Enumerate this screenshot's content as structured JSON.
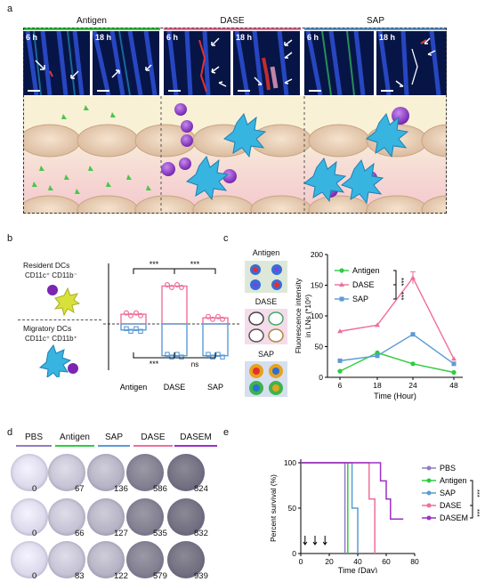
{
  "panel_labels": {
    "a": "a",
    "b": "b",
    "c": "c",
    "d": "d",
    "e": "e"
  },
  "panel_a": {
    "groups": [
      {
        "name": "Antigen",
        "color": "#2ecc40",
        "times": [
          "6 h",
          "18 h"
        ]
      },
      {
        "name": "DASE",
        "color": "#ef6f9a",
        "times": [
          "6 h",
          "18 h"
        ]
      },
      {
        "name": "SAP",
        "color": "#5b9bd5",
        "times": [
          "6 h",
          "18 h"
        ]
      }
    ]
  },
  "panel_b": {
    "legend_top_title": "Resident DCs",
    "legend_top_marker": "CD11c⁺ CD11b⁻",
    "legend_bottom_title": "Migratory DCs",
    "legend_bottom_marker": "CD11c⁺ CD11b⁺",
    "sig_top_1": "***",
    "sig_top_2": "***",
    "sig_bottom_1": "***",
    "sig_bottom_2": "ns",
    "colors": {
      "resident": "#ef6f9a",
      "migratory": "#5b9bd5"
    }
  },
  "chart_data": [
    {
      "type": "bar",
      "categories": [
        "Antigen",
        "DASE",
        "SAP"
      ],
      "series": [
        {
          "values": [
            3.2,
            12.5,
            2.0
          ]
        },
        {
          "values": [
            -2.0,
            -10.5,
            -10.5
          ]
        }
      ],
      "ylim": [
        -12,
        14
      ]
    },
    {
      "type": "line",
      "x": [
        6,
        18,
        24,
        48
      ],
      "xticks": [
        "6",
        "18",
        "24",
        "48"
      ],
      "yticks": [
        "0",
        "50",
        "100",
        "150",
        "200"
      ],
      "ylim": [
        0,
        200
      ],
      "xlabel": "Time (Hour)",
      "ylabel_line1": "Fluorescence intensity",
      "ylabel_line2": "in LNs (*10⁶)",
      "series": [
        {
          "name": "Antigen",
          "color": "#2ecc40",
          "values": [
            10,
            40,
            22,
            8
          ]
        },
        {
          "name": "DASE",
          "color": "#ef6f9a",
          "values": [
            75,
            85,
            162,
            30
          ]
        },
        {
          "name": "SAP",
          "color": "#5b9bd5",
          "values": [
            27,
            35,
            70,
            22
          ]
        }
      ],
      "sig": [
        "***",
        "***"
      ]
    },
    {
      "type": "line",
      "x": [
        0,
        20,
        40,
        60,
        80
      ],
      "xticks": [
        "0",
        "20",
        "40",
        "60",
        "80"
      ],
      "yticks": [
        "0",
        "50",
        "100"
      ],
      "ylim": [
        0,
        100
      ],
      "xlabel": "Time (Day)",
      "ylabel": "Percent survival (%)",
      "series": [
        {
          "name": "PBS",
          "color": "#8e7cc3"
        },
        {
          "name": "Antigen",
          "color": "#2ecc40"
        },
        {
          "name": "SAP",
          "color": "#5b9bd5"
        },
        {
          "name": "DASE",
          "color": "#ef6f9a"
        },
        {
          "name": "DASEM",
          "color": "#9b30c8"
        }
      ],
      "sig": [
        "***",
        "***"
      ]
    }
  ],
  "panel_c_images": {
    "labels": [
      "Antigen",
      "DASE",
      "SAP"
    ]
  },
  "panel_d": {
    "headers": [
      {
        "name": "PBS",
        "color": "#8e7cc3"
      },
      {
        "name": "Antigen",
        "color": "#2ecc40"
      },
      {
        "name": "SAP",
        "color": "#5b9bd5"
      },
      {
        "name": "DASE",
        "color": "#ef6f9a"
      },
      {
        "name": "DASEM",
        "color": "#9b30c8"
      }
    ],
    "counts": [
      [
        "0",
        "67",
        "136",
        "586",
        "824"
      ],
      [
        "0",
        "66",
        "127",
        "535",
        "832"
      ],
      [
        "0",
        "83",
        "122",
        "579",
        "939"
      ]
    ]
  }
}
